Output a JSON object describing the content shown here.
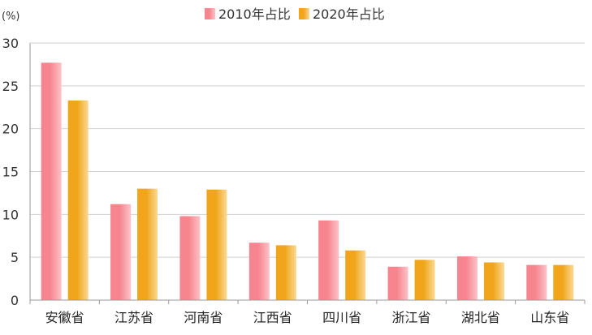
{
  "chart_data": {
    "type": "bar",
    "unit_label": "(%)",
    "categories": [
      "安徽省",
      "江苏省",
      "河南省",
      "江西省",
      "四川省",
      "浙江省",
      "湖北省",
      "山东省"
    ],
    "series": [
      {
        "name": "2010年占比",
        "values": [
          27.7,
          11.2,
          9.8,
          6.7,
          9.3,
          3.9,
          5.1,
          4.1
        ],
        "colors": {
          "dark": "#f7858f",
          "light": "#fcc2c8"
        }
      },
      {
        "name": "2020年占比",
        "values": [
          23.3,
          13.0,
          12.9,
          6.4,
          5.8,
          4.7,
          4.4,
          4.1
        ],
        "colors": {
          "dark": "#f0a51a",
          "light": "#fbd994"
        }
      }
    ],
    "ylim": [
      0,
      30
    ],
    "yticks": [
      0,
      5,
      10,
      15,
      20,
      25,
      30
    ],
    "grid": true,
    "legend_position": "top-center"
  }
}
